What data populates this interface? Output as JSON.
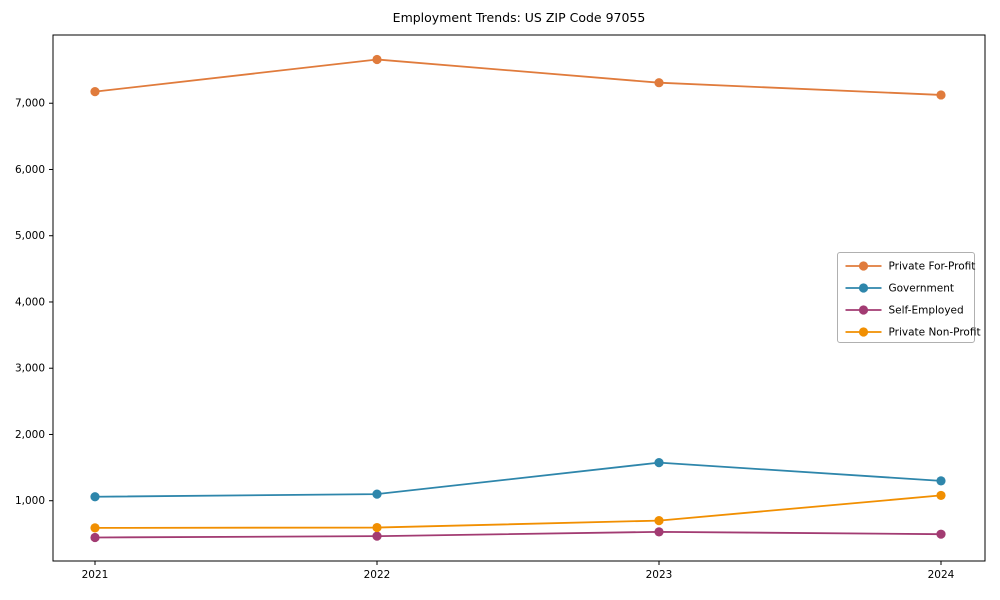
{
  "chart_data": {
    "type": "line",
    "title": "Employment Trends: US ZIP Code 97055",
    "xlabel": "",
    "ylabel": "",
    "x": [
      2021,
      2022,
      2023,
      2024
    ],
    "xtick_labels": [
      "2021",
      "2022",
      "2023",
      "2024"
    ],
    "series": [
      {
        "name": "Private For-Profit",
        "color": "#E07B3C",
        "values": [
          7175,
          7660,
          7310,
          7125
        ]
      },
      {
        "name": "Government",
        "color": "#2E86AB",
        "values": [
          1060,
          1100,
          1575,
          1300
        ]
      },
      {
        "name": "Self-Employed",
        "color": "#A23B72",
        "values": [
          445,
          465,
          530,
          495
        ]
      },
      {
        "name": "Private Non-Profit",
        "color": "#F18F01",
        "values": [
          590,
          595,
          700,
          1080
        ]
      }
    ],
    "yticks": [
      1000,
      2000,
      3000,
      4000,
      5000,
      6000,
      7000
    ],
    "ytick_labels": [
      "1,000",
      "2,000",
      "3,000",
      "4,000",
      "5,000",
      "6,000",
      "7,000"
    ],
    "ylim": [
      90,
      8030
    ],
    "grid": false,
    "legend_position": "center-right",
    "marker": "circle",
    "axis_color": "#000000",
    "legend_border_color": "#b0b0b0",
    "background_color": "#ffffff"
  }
}
